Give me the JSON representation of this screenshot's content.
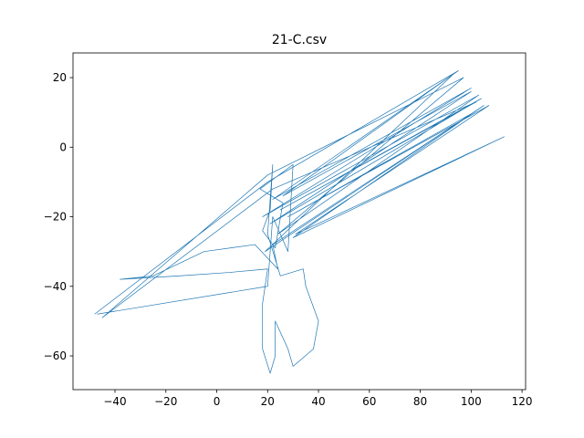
{
  "chart_data": {
    "type": "line",
    "title": "21-C.csv",
    "x": [
      -48,
      20,
      95,
      22,
      100,
      18,
      103,
      24,
      97,
      20,
      -45,
      22,
      102,
      25,
      104,
      21,
      100,
      26,
      93,
      19,
      105,
      30,
      113,
      31,
      107,
      28,
      101,
      22,
      24,
      15,
      -5,
      -25,
      -38,
      -15,
      5,
      20,
      18,
      18,
      21,
      23,
      23,
      28,
      30,
      38,
      40,
      35,
      34,
      25,
      20,
      22,
      21,
      18,
      23,
      26,
      17,
      30,
      28,
      22,
      20,
      -47
    ],
    "series": [
      {
        "name": "21-C",
        "color": "#1f77b4",
        "values": [
          -48,
          -10,
          22,
          -15,
          17,
          -20,
          15,
          -25,
          20,
          -8,
          -49,
          -12,
          13,
          -18,
          14,
          -22,
          16,
          -14,
          21,
          -30,
          12,
          -26,
          3,
          -25,
          12,
          -20,
          10,
          -28,
          -35,
          -28,
          -30,
          -37,
          -38,
          -37,
          -36,
          -35,
          -45,
          -58,
          -65,
          -60,
          -50,
          -58,
          -63,
          -58,
          -50,
          -40,
          -35,
          -37,
          -25,
          -5,
          -18,
          -24,
          -29,
          -16,
          -12,
          -5,
          -30,
          -20,
          -40,
          -48
        ]
      }
    ],
    "xlim": [
      -56.5,
      121.4
    ],
    "ylim": [
      -69.7,
      27.1
    ],
    "xticks": [
      {
        "value": -40,
        "label": "−40"
      },
      {
        "value": -20,
        "label": "−20"
      },
      0,
      20,
      40,
      60,
      80,
      100,
      120
    ],
    "yticks": [
      {
        "value": -60,
        "label": "−60"
      },
      {
        "value": -40,
        "label": "−40"
      },
      {
        "value": -20,
        "label": "−20"
      },
      0,
      20
    ]
  }
}
